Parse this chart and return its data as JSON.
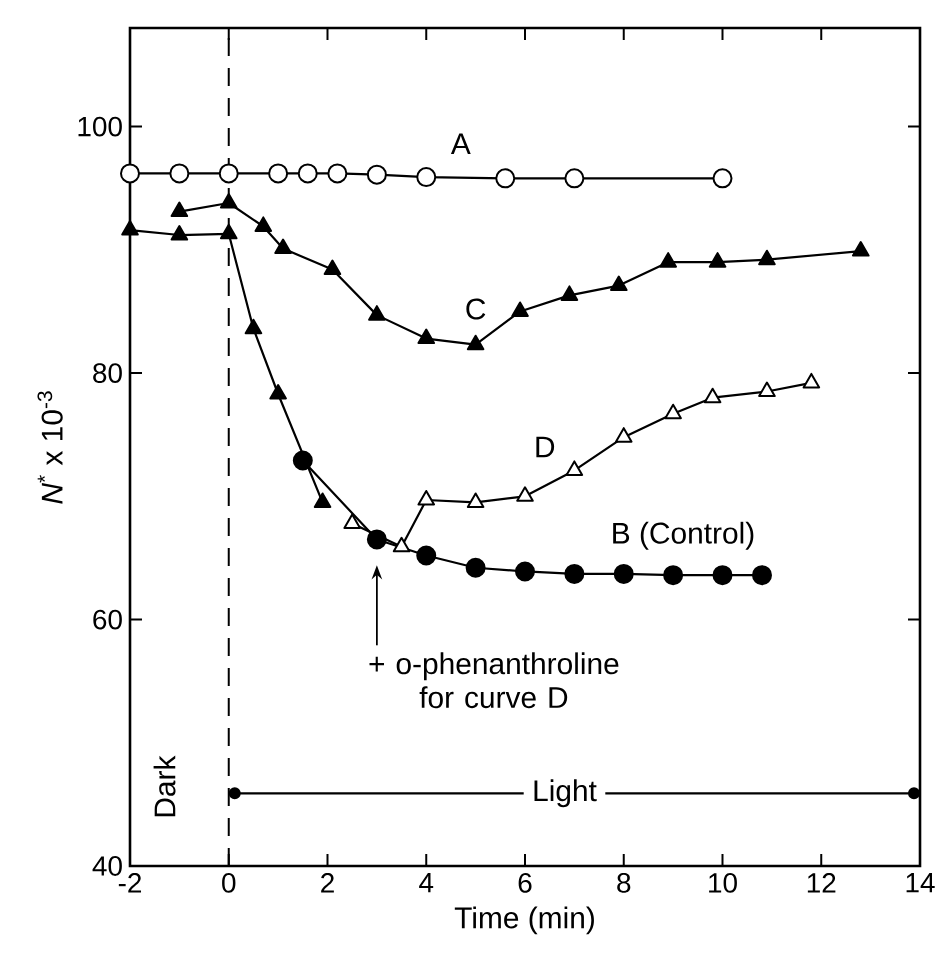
{
  "chart_data": {
    "type": "line",
    "xlabel": "Time   (min)",
    "ylabel": "*N*$^{*}$ x 10$^{-3}$",
    "xlim": [
      -2,
      14
    ],
    "ylim": [
      40,
      108
    ],
    "xticks": [
      -2,
      0,
      2,
      4,
      6,
      8,
      10,
      12,
      14
    ],
    "yticks": [
      40,
      60,
      80,
      100
    ],
    "grid": false,
    "series": [
      {
        "color": "#000000",
        "marker": "circle",
        "x": [
          -2,
          -1,
          0,
          1,
          1.6,
          2.2,
          3,
          4,
          5.6,
          7,
          10
        ],
        "values": [
          96.2,
          96.2,
          96.2,
          96.2,
          96.2,
          96.2,
          96.1,
          95.9,
          95.8,
          95.8,
          95.8
        ]
      },
      {
        "color": "#000000",
        "marker": "triangle",
        "x": [
          -1,
          0,
          0.7,
          1.1,
          2.1,
          3,
          4,
          5,
          5.9,
          6.9,
          7.9,
          8.9,
          9.9,
          10.9,
          12.8
        ],
        "values": [
          93.1,
          93.8,
          91.9,
          90.1,
          88.4,
          84.7,
          82.8,
          82.3,
          85.0,
          86.3,
          87.1,
          89.0,
          89.0,
          89.2,
          89.9
        ]
      },
      {
        "color": "#000000",
        "marker": "triangle",
        "x": [
          -2,
          -1,
          0,
          0.5,
          1.0,
          1.9
        ],
        "values": [
          91.6,
          91.2,
          91.3,
          83.6,
          78.3,
          69.5
        ]
      },
      {
        "color": "#000000",
        "marker": "circle",
        "x": [
          1.5,
          3,
          4,
          5,
          6,
          7,
          8,
          9,
          10,
          10.8
        ],
        "values": [
          72.9,
          66.5,
          65.2,
          64.2,
          63.9,
          63.7,
          63.7,
          63.6,
          63.6,
          63.6
        ]
      },
      {
        "color": "#000000",
        "marker": "triangle",
        "x": [
          2.5,
          3.5,
          4,
          5,
          6,
          7,
          8,
          9,
          9.8,
          10.9,
          11.8
        ],
        "values": [
          67.8,
          65.9,
          69.7,
          69.5,
          70.0,
          72.1,
          74.8,
          76.7,
          78.0,
          78.5,
          79.2
        ]
      }
    ],
    "ref_lines": [
      {
        "axis": "x",
        "value": 0,
        "line_style": "dashed"
      }
    ],
    "annotations": [
      "A",
      "C",
      "D",
      "B (Control)",
      "+ o-phenanthroline for curve D",
      "Light",
      "Dark"
    ]
  }
}
